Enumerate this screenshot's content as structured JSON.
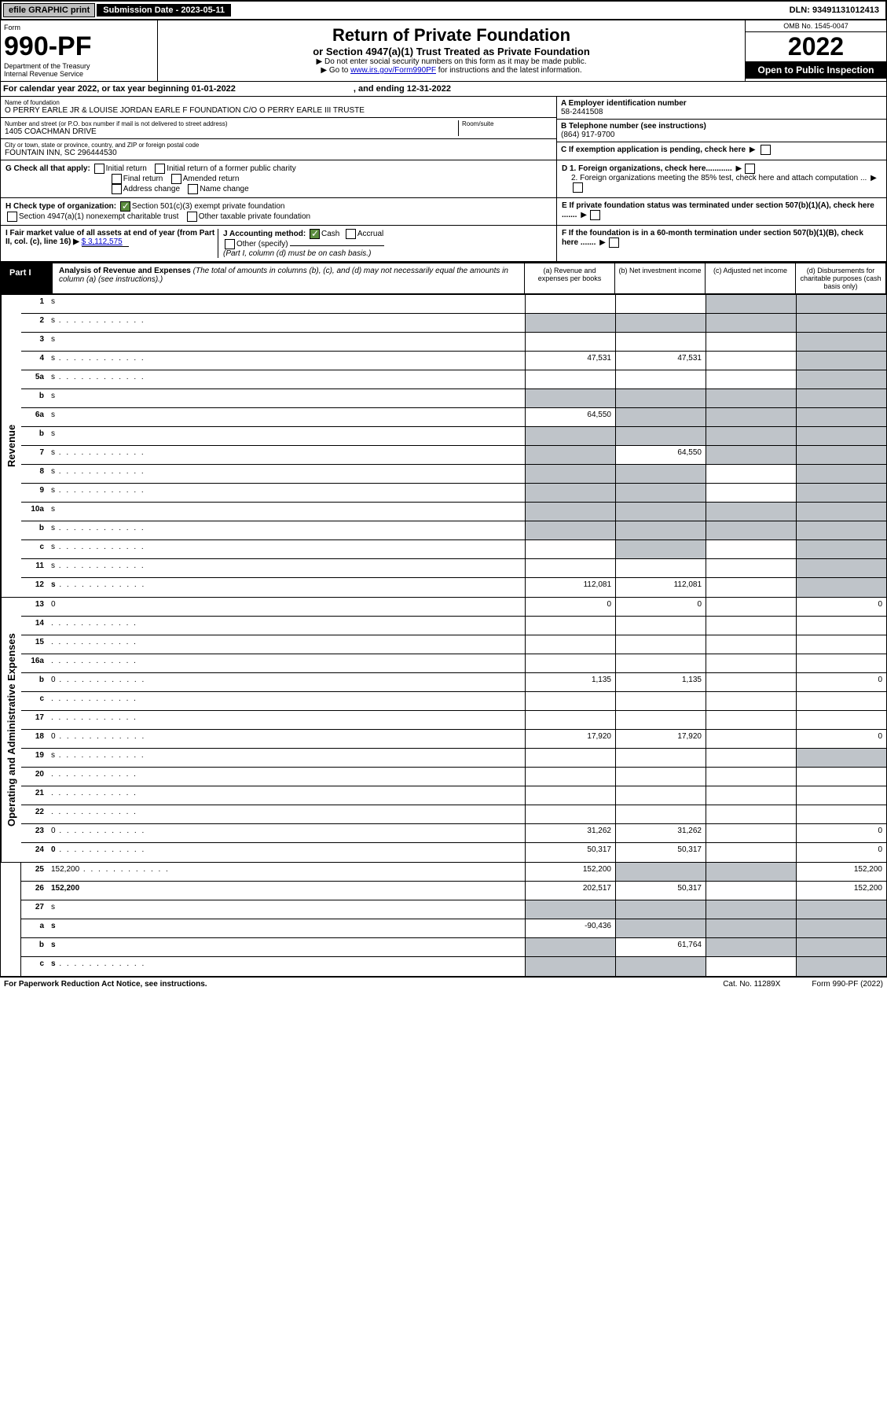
{
  "topbar": {
    "efile": "efile GRAPHIC print",
    "submission_label": "Submission Date - 2023-05-11",
    "dln": "DLN: 93491131012413"
  },
  "header": {
    "form_word": "Form",
    "form_no": "990-PF",
    "dept": "Department of the Treasury",
    "irs": "Internal Revenue Service",
    "title": "Return of Private Foundation",
    "subtitle": "or Section 4947(a)(1) Trust Treated as Private Foundation",
    "instr1": "▶ Do not enter social security numbers on this form as it may be made public.",
    "instr2_pre": "▶ Go to ",
    "instr2_link": "www.irs.gov/Form990PF",
    "instr2_post": " for instructions and the latest information.",
    "omb": "OMB No. 1545-0047",
    "year": "2022",
    "open": "Open to Public Inspection"
  },
  "calyear": {
    "text_a": "For calendar year 2022, or tax year beginning 01-01-2022",
    "text_b": ", and ending 12-31-2022"
  },
  "entity": {
    "name_lbl": "Name of foundation",
    "name": "O PERRY EARLE JR & LOUISE JORDAN EARLE F FOUNDATION C/O O PERRY EARLE III TRUSTE",
    "addr_lbl": "Number and street (or P.O. box number if mail is not delivered to street address)",
    "addr": "1405 COACHMAN DRIVE",
    "room_lbl": "Room/suite",
    "city_lbl": "City or town, state or province, country, and ZIP or foreign postal code",
    "city": "FOUNTAIN INN, SC 296444530",
    "ein_lbl": "A Employer identification number",
    "ein": "58-2441508",
    "tel_lbl": "B Telephone number (see instructions)",
    "tel": "(864) 917-9700",
    "c_lbl": "C If exemption application is pending, check here",
    "d1_lbl": "D 1. Foreign organizations, check here............",
    "d2_lbl": "2. Foreign organizations meeting the 85% test, check here and attach computation ...",
    "e_lbl": "E  If private foundation status was terminated under section 507(b)(1)(A), check here .......",
    "f_lbl": "F  If the foundation is in a 60-month termination under section 507(b)(1)(B), check here ......."
  },
  "checks": {
    "g_lbl": "G Check all that apply:",
    "g_opts": [
      "Initial return",
      "Initial return of a former public charity",
      "Final return",
      "Amended return",
      "Address change",
      "Name change"
    ],
    "h_lbl": "H Check type of organization:",
    "h1": "Section 501(c)(3) exempt private foundation",
    "h2": "Section 4947(a)(1) nonexempt charitable trust",
    "h3": "Other taxable private foundation",
    "i_lbl": "I Fair market value of all assets at end of year (from Part II, col. (c), line 16) ▶",
    "i_val": "$ 3,112,575",
    "j_lbl": "J Accounting method:",
    "j_cash": "Cash",
    "j_accr": "Accrual",
    "j_other": "Other (specify)",
    "j_note": "(Part I, column (d) must be on cash basis.)"
  },
  "part1": {
    "label": "Part I",
    "title": "Analysis of Revenue and Expenses",
    "title_note": " (The total of amounts in columns (b), (c), and (d) may not necessarily equal the amounts in column (a) (see instructions).)",
    "col_a": "(a)  Revenue and expenses per books",
    "col_b": "(b)  Net investment income",
    "col_c": "(c)  Adjusted net income",
    "col_d": "(d)  Disbursements for charitable purposes (cash basis only)"
  },
  "side": {
    "rev": "Revenue",
    "exp": "Operating and Administrative Expenses"
  },
  "rows": [
    {
      "n": "1",
      "d": "s",
      "a": "",
      "b": "",
      "c": "s"
    },
    {
      "n": "2",
      "d": "s",
      "dot": true,
      "a": "s",
      "b": "s",
      "c": "s"
    },
    {
      "n": "3",
      "d": "s",
      "a": "",
      "b": "",
      "c": ""
    },
    {
      "n": "4",
      "d": "s",
      "dot": true,
      "a": "47,531",
      "b": "47,531",
      "c": ""
    },
    {
      "n": "5a",
      "d": "s",
      "dot": true,
      "a": "",
      "b": "",
      "c": ""
    },
    {
      "n": "b",
      "d": "s",
      "a": "s",
      "b": "s",
      "c": "s"
    },
    {
      "n": "6a",
      "d": "s",
      "a": "64,550",
      "b": "s",
      "c": "s"
    },
    {
      "n": "b",
      "d": "s",
      "a": "s",
      "b": "s",
      "c": "s"
    },
    {
      "n": "7",
      "d": "s",
      "dot": true,
      "a": "s",
      "b": "64,550",
      "c": "s"
    },
    {
      "n": "8",
      "d": "s",
      "dot": true,
      "a": "s",
      "b": "s",
      "c": ""
    },
    {
      "n": "9",
      "d": "s",
      "dot": true,
      "a": "s",
      "b": "s",
      "c": ""
    },
    {
      "n": "10a",
      "d": "s",
      "a": "s",
      "b": "s",
      "c": "s"
    },
    {
      "n": "b",
      "d": "s",
      "dot": true,
      "a": "s",
      "b": "s",
      "c": "s"
    },
    {
      "n": "c",
      "d": "s",
      "dot": true,
      "a": "",
      "b": "s",
      "c": ""
    },
    {
      "n": "11",
      "d": "s",
      "dot": true,
      "a": "",
      "b": "",
      "c": ""
    },
    {
      "n": "12",
      "d": "s",
      "dot": true,
      "bold": true,
      "a": "112,081",
      "b": "112,081",
      "c": ""
    },
    {
      "n": "13",
      "d": "0",
      "a": "0",
      "b": "0",
      "c": ""
    },
    {
      "n": "14",
      "d": "",
      "dot": true,
      "a": "",
      "b": "",
      "c": ""
    },
    {
      "n": "15",
      "d": "",
      "dot": true,
      "a": "",
      "b": "",
      "c": ""
    },
    {
      "n": "16a",
      "d": "",
      "dot": true,
      "a": "",
      "b": "",
      "c": ""
    },
    {
      "n": "b",
      "d": "0",
      "dot": true,
      "a": "1,135",
      "b": "1,135",
      "c": ""
    },
    {
      "n": "c",
      "d": "",
      "dot": true,
      "a": "",
      "b": "",
      "c": ""
    },
    {
      "n": "17",
      "d": "",
      "dot": true,
      "a": "",
      "b": "",
      "c": ""
    },
    {
      "n": "18",
      "d": "0",
      "dot": true,
      "a": "17,920",
      "b": "17,920",
      "c": ""
    },
    {
      "n": "19",
      "d": "s",
      "dot": true,
      "a": "",
      "b": "",
      "c": ""
    },
    {
      "n": "20",
      "d": "",
      "dot": true,
      "a": "",
      "b": "",
      "c": ""
    },
    {
      "n": "21",
      "d": "",
      "dot": true,
      "a": "",
      "b": "",
      "c": ""
    },
    {
      "n": "22",
      "d": "",
      "dot": true,
      "a": "",
      "b": "",
      "c": ""
    },
    {
      "n": "23",
      "d": "0",
      "dot": true,
      "a": "31,262",
      "b": "31,262",
      "c": ""
    },
    {
      "n": "24",
      "d": "0",
      "dot": true,
      "bold": true,
      "a": "50,317",
      "b": "50,317",
      "c": ""
    },
    {
      "n": "25",
      "d": "152,200",
      "dot": true,
      "a": "152,200",
      "b": "s",
      "c": "s"
    },
    {
      "n": "26",
      "d": "152,200",
      "bold": true,
      "a": "202,517",
      "b": "50,317",
      "c": ""
    },
    {
      "n": "27",
      "d": "s",
      "a": "s",
      "b": "s",
      "c": "s"
    },
    {
      "n": "a",
      "d": "s",
      "bold": true,
      "a": "-90,436",
      "b": "s",
      "c": "s"
    },
    {
      "n": "b",
      "d": "s",
      "bold": true,
      "a": "s",
      "b": "61,764",
      "c": "s"
    },
    {
      "n": "c",
      "d": "s",
      "dot": true,
      "bold": true,
      "a": "s",
      "b": "s",
      "c": ""
    }
  ],
  "footer": {
    "left": "For Paperwork Reduction Act Notice, see instructions.",
    "mid": "Cat. No. 11289X",
    "right": "Form 990-PF (2022)"
  }
}
